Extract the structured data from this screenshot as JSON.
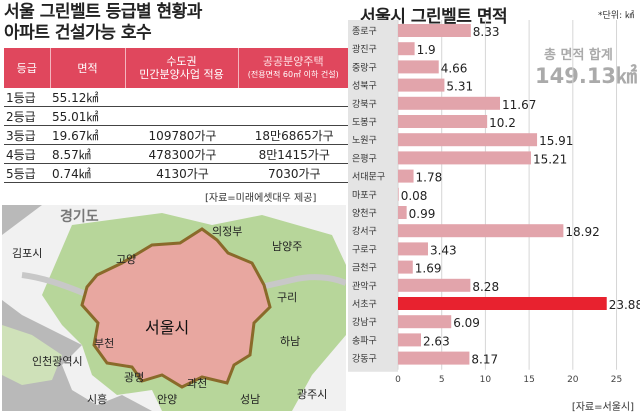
{
  "left": {
    "title_line1": "서울 그린벨트 등급별 현황과",
    "title_line2": "아파트 건설가능 호수",
    "table": {
      "headers": [
        "등급",
        "면적",
        "수도권",
        "민간분양사업 적용",
        "공공분양주택",
        "(전용면적 60㎡ 이하 건설)"
      ],
      "rows": [
        [
          "1등급",
          "55.12㎢",
          "",
          ""
        ],
        [
          "2등급",
          "55.01㎢",
          "",
          ""
        ],
        [
          "3등급",
          "19.67㎢",
          "109780가구",
          "18만6865가구"
        ],
        [
          "4등급",
          "8.57㎢",
          "478300가구",
          "8만1415가구"
        ],
        [
          "5등급",
          "0.74㎢",
          "4130가구",
          "7030가구"
        ]
      ]
    },
    "source": "[자료=미래에셋대우 제공]",
    "map": {
      "labels": {
        "gyeonggi": "경기도",
        "uijeongbu": "의정부",
        "goyang": "고양",
        "namyangju": "남양주",
        "gimpo": "김포시",
        "guri": "구리",
        "seoul": "서울시",
        "bucheon": "부천",
        "incheon": "인천광역시",
        "hanam": "하남",
        "gwangmyeong": "광명",
        "siheung": "시흥",
        "anyang": "안양",
        "gwacheon": "과천",
        "seongnam": "성남",
        "gwangju": "광주시"
      }
    }
  },
  "right": {
    "title": "서울시 그린벨트 면적",
    "unit": "*단위: ㎢",
    "total_label": "총 면적 합계",
    "total_value": "149.13㎢",
    "source": "[자료=서울시]"
  },
  "chart_data": {
    "type": "bar",
    "orientation": "horizontal",
    "title": "서울시 그린벨트 면적",
    "unit": "㎢",
    "categories": [
      "종로구",
      "광진구",
      "중랑구",
      "성북구",
      "강북구",
      "도봉구",
      "노원구",
      "은평구",
      "서대문구",
      "마포구",
      "양천구",
      "강서구",
      "구로구",
      "금천구",
      "관악구",
      "서초구",
      "강남구",
      "송파구",
      "강동구"
    ],
    "values": [
      8.33,
      1.9,
      4.66,
      5.31,
      11.67,
      10.2,
      15.91,
      15.21,
      1.78,
      0.08,
      0.99,
      18.92,
      3.43,
      1.69,
      8.28,
      23.88,
      6.09,
      2.63,
      8.17
    ],
    "value_labels": [
      "8.33",
      "1.9",
      "4.66",
      "5.31",
      "11.67",
      "10.2",
      "15.91",
      "15.21",
      "1.78",
      "0.08",
      "0.99",
      "18.92",
      "3.43",
      "1.69",
      "8.28",
      "23.88",
      "6.09",
      "2.63",
      "8.17"
    ],
    "highlight": "서초구",
    "xlim": [
      0,
      27
    ],
    "xticks": [
      0,
      5,
      10,
      15,
      20,
      25
    ],
    "colors": {
      "bar": "#e2a4ab",
      "highlight": "#e8222f"
    }
  }
}
